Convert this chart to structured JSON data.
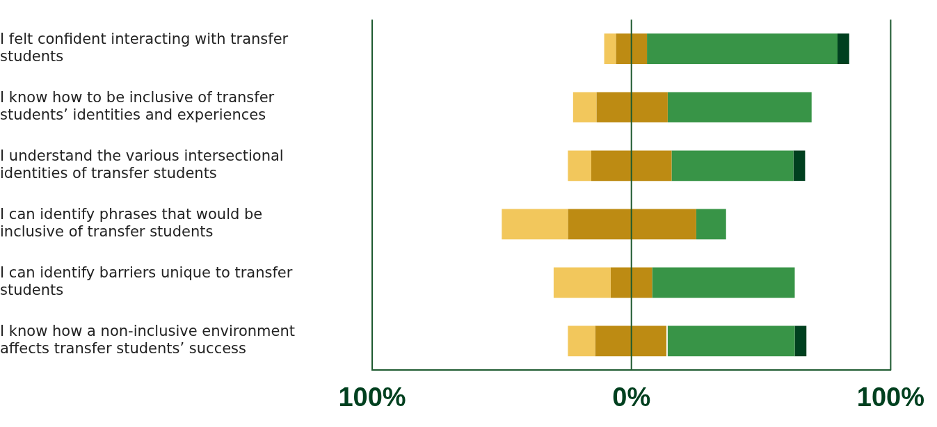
{
  "chart_data": {
    "type": "bar",
    "orientation": "horizontal",
    "categories": [
      "I felt confident interacting with transfer students",
      "I know how to be inclusive of transfer students’ identities and experiences",
      "I understand the various intersectional identities of transfer students",
      "I can identify phrases that would be inclusive of transfer students",
      "I can identify barriers unique to transfer students",
      "I know how a non-inclusive environment affects transfer students’ success"
    ],
    "series": [
      {
        "color": "#f2c75c",
        "base": [
          -10.5,
          -22.5,
          -24.5,
          -50,
          -30,
          -24.5
        ],
        "values": [
          4.5,
          9,
          9,
          25.5,
          22,
          10.5
        ]
      },
      {
        "color": "#bd8b13",
        "base": [
          -6,
          -13.5,
          -15.5,
          -24.5,
          -8,
          -14
        ],
        "values": [
          12,
          27.5,
          31,
          49.5,
          16,
          27.5
        ]
      },
      {
        "color": "#389447",
        "base": [
          6,
          14,
          15.5,
          25,
          8,
          14
        ],
        "values": [
          73.5,
          55.5,
          47,
          11.5,
          55,
          49
        ]
      },
      {
        "color": "#00401f",
        "base": [
          79.5,
          null,
          62.5,
          null,
          null,
          63
        ],
        "values": [
          4.5,
          null,
          4.5,
          null,
          null,
          4.5
        ]
      }
    ],
    "xlim": [
      -100,
      100
    ],
    "xticks": [
      {
        "value": -100,
        "label": "100%"
      },
      {
        "value": 0,
        "label": "0%"
      },
      {
        "value": 100,
        "label": "100%"
      }
    ],
    "ref_lines": [
      {
        "axis": "x",
        "value": 0,
        "color": "#1e5a30"
      }
    ],
    "legend": false
  }
}
